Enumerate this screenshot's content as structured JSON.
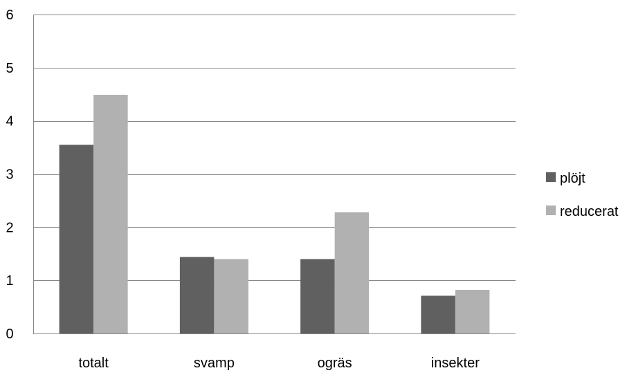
{
  "chart_data": {
    "type": "bar",
    "title": "",
    "xlabel": "",
    "ylabel": "",
    "categories": [
      "totalt",
      "svamp",
      "ogräs",
      "insekter"
    ],
    "series": [
      {
        "name": "plöjt",
        "color": "#606060",
        "values": [
          3.55,
          1.44,
          1.4,
          0.71
        ]
      },
      {
        "name": "reducerat",
        "color": "#b1b1b1",
        "values": [
          4.49,
          1.4,
          2.28,
          0.82
        ]
      }
    ],
    "ylim": [
      0,
      6
    ],
    "yticks": [
      "0",
      "1",
      "2",
      "3",
      "4",
      "5",
      "6"
    ],
    "grid": true,
    "legend_position": "right"
  }
}
